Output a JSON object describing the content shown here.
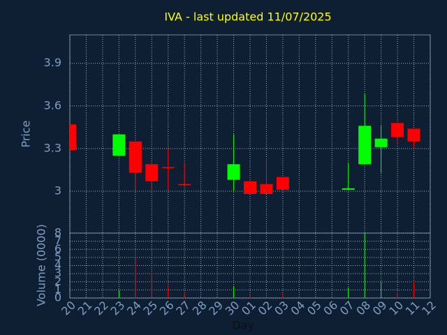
{
  "chart_data": {
    "type": "candlestick",
    "title": "IVA - last updated 11/07/2025",
    "ylabel": "Price",
    "xlabel": "Day",
    "categories": [
      "20",
      "21",
      "22",
      "23",
      "24",
      "25",
      "26",
      "27",
      "28",
      "29",
      "30",
      "01",
      "02",
      "03",
      "04",
      "05",
      "06",
      "07",
      "08",
      "09",
      "10",
      "11",
      "12"
    ],
    "open": [
      3.47,
      null,
      null,
      3.25,
      3.35,
      3.19,
      3.17,
      3.05,
      null,
      null,
      3.08,
      3.07,
      3.05,
      3.1,
      null,
      null,
      null,
      3.01,
      3.19,
      3.31,
      3.48,
      3.44,
      null
    ],
    "high": [
      3.47,
      null,
      null,
      3.4,
      3.35,
      3.19,
      3.3,
      3.2,
      null,
      null,
      3.4,
      3.07,
      3.23,
      3.1,
      null,
      null,
      null,
      3.2,
      3.69,
      3.46,
      3.48,
      3.44,
      null
    ],
    "low": [
      3.29,
      null,
      null,
      3.25,
      3.01,
      3.0,
      3.01,
      3.05,
      null,
      null,
      3.0,
      2.98,
      2.98,
      3.01,
      null,
      null,
      null,
      3.01,
      3.19,
      3.13,
      3.33,
      3.31,
      null
    ],
    "close": [
      3.29,
      null,
      null,
      3.4,
      3.13,
      3.07,
      3.17,
      3.05,
      null,
      null,
      3.19,
      2.98,
      2.98,
      3.01,
      null,
      null,
      null,
      3.02,
      3.46,
      3.37,
      3.38,
      3.35,
      null
    ],
    "up_color": "#00ff00",
    "down_color": "#ff0000",
    "ylim": [
      2.705,
      4.1
    ],
    "yticks": [
      3,
      3.3,
      3.6,
      3.9
    ],
    "grid": true,
    "volume": {
      "ylabel": "Volume (0000)",
      "ylim": [
        0,
        8
      ],
      "yticks": [
        0,
        1,
        2,
        3,
        4,
        5,
        6,
        7,
        8
      ],
      "values": [
        null,
        null,
        null,
        1,
        4.7,
        3,
        1.5,
        0.5,
        null,
        null,
        1.5,
        0.3,
        0.7,
        0.5,
        null,
        null,
        null,
        1.3,
        8,
        2,
        0.7,
        2.1,
        null
      ]
    }
  }
}
